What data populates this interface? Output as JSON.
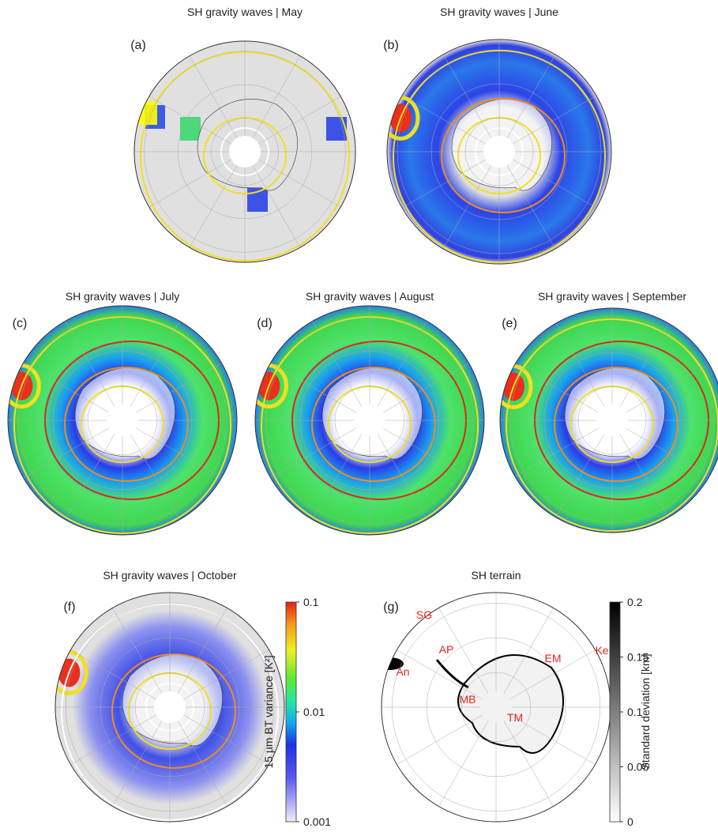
{
  "panels": [
    {
      "title": "SH gravity waves | May",
      "label": "(a)"
    },
    {
      "title": "SH gravity waves | June",
      "label": "(b)"
    },
    {
      "title": "SH gravity waves | July",
      "label": "(c)"
    },
    {
      "title": "SH gravity waves | August",
      "label": "(d)"
    },
    {
      "title": "SH gravity waves | September",
      "label": "(e)"
    },
    {
      "title": "SH gravity waves | October",
      "label": "(f)"
    },
    {
      "title": "SH terrain",
      "label": "(g)",
      "regions": [
        "SG",
        "AP",
        "An",
        "MB",
        "TM",
        "EM",
        "Ke"
      ]
    }
  ],
  "colorbars": [
    {
      "label": "15 µm BT variance [K²]",
      "log_scale": true,
      "lim": [
        0.001,
        0.1
      ],
      "ticks": [
        0.001,
        0.01,
        0.1
      ]
    },
    {
      "label": "Standard deviation [km]",
      "log_scale": false,
      "lim": [
        0,
        0.2
      ],
      "ticks": [
        0,
        0.05,
        0.1,
        0.15,
        0.2
      ]
    }
  ]
}
